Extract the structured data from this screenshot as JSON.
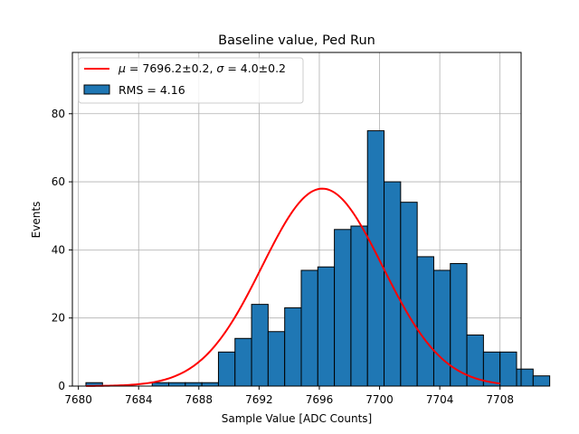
{
  "chart_data": {
    "type": "histogram",
    "title": "Baseline value, Ped Run",
    "xlabel": "Sample Value [ADC Counts]",
    "ylabel": "Events",
    "xlim": [
      7679.6,
      7709.4
    ],
    "ylim": [
      0,
      98
    ],
    "xticks": [
      7680,
      7684,
      7688,
      7692,
      7696,
      7700,
      7704,
      7708
    ],
    "yticks": [
      0,
      20,
      40,
      60,
      80
    ],
    "grid": true,
    "legend_position": "top-left",
    "bin_width": 1.1,
    "bin_start": 7680.5,
    "bar_values": [
      1,
      0,
      0,
      0,
      1,
      1,
      1,
      1,
      10,
      14,
      24,
      16,
      23,
      34,
      35,
      46,
      47,
      75,
      60,
      54,
      38,
      34,
      36,
      15,
      10,
      10,
      5,
      3
    ],
    "fit": {
      "mu": 7696.2,
      "sigma": 4.0,
      "amplitude": 58,
      "x_range": [
        7680.5,
        7708
      ]
    },
    "series": [
      {
        "name": "fit",
        "color": "#ff0000"
      },
      {
        "name": "RMS = 4.16",
        "color": "#1f77b4"
      }
    ],
    "legend": {
      "fit_label_parts": [
        "μ",
        " = 7696.2±0.2, ",
        "σ",
        " = 4.0±0.2"
      ],
      "hist_label": "RMS = 4.16"
    }
  }
}
